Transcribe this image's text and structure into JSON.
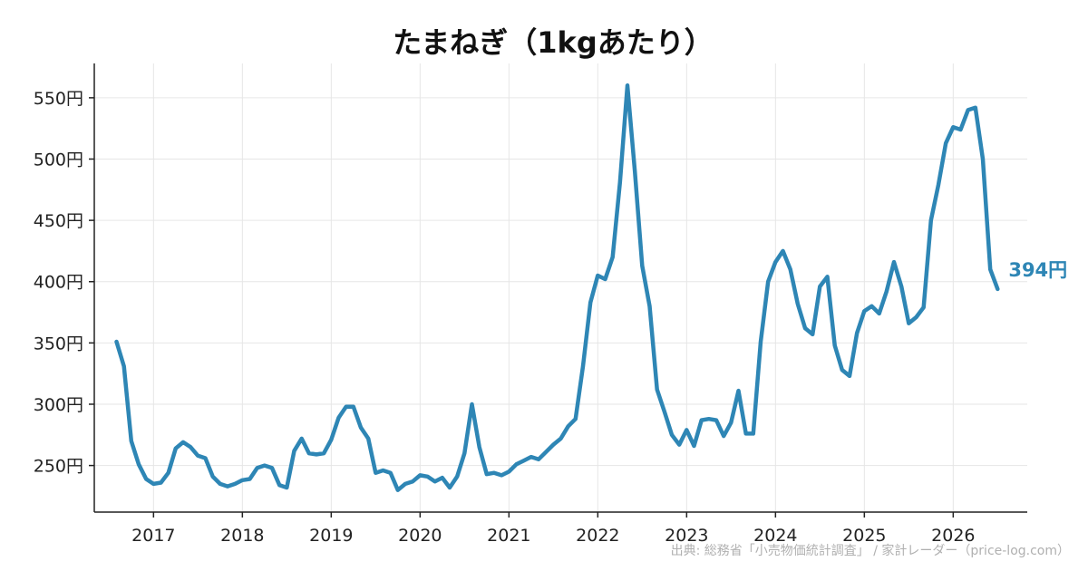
{
  "chart_data": {
    "type": "line",
    "title": "たまねぎ（1kgあたり）",
    "xlabel": "",
    "ylabel": "",
    "ylim": [
      212,
      578
    ],
    "xlim": [
      "2016-05",
      "2026-11"
    ],
    "y_ticks": [
      {
        "value": 250,
        "label": "250円"
      },
      {
        "value": 300,
        "label": "300円"
      },
      {
        "value": 350,
        "label": "350円"
      },
      {
        "value": 400,
        "label": "400円"
      },
      {
        "value": 450,
        "label": "450円"
      },
      {
        "value": 500,
        "label": "500円"
      },
      {
        "value": 550,
        "label": "550円"
      }
    ],
    "x_ticks": [
      {
        "value": "2017-01",
        "label": "2017"
      },
      {
        "value": "2018-01",
        "label": "2018"
      },
      {
        "value": "2019-01",
        "label": "2019"
      },
      {
        "value": "2020-01",
        "label": "2020"
      },
      {
        "value": "2021-01",
        "label": "2021"
      },
      {
        "value": "2022-01",
        "label": "2022"
      },
      {
        "value": "2023-01",
        "label": "2023"
      },
      {
        "value": "2024-01",
        "label": "2024"
      },
      {
        "value": "2025-01",
        "label": "2025"
      },
      {
        "value": "2026-01",
        "label": "2026"
      }
    ],
    "grid": true,
    "legend": "none",
    "series": [
      {
        "color": "#2e86b5",
        "start": "2016-08",
        "values": [
          351,
          331,
          270,
          251,
          239,
          235,
          236,
          244,
          264,
          269,
          265,
          258,
          256,
          241,
          235,
          233,
          235,
          238,
          239,
          248,
          250,
          248,
          234,
          232,
          262,
          272,
          260,
          259,
          260,
          271,
          289,
          298,
          298,
          281,
          272,
          244,
          246,
          244,
          230,
          235,
          237,
          242,
          241,
          237,
          240,
          232,
          241,
          260,
          300,
          265,
          243,
          244,
          242,
          245,
          251,
          254,
          257,
          255,
          261,
          267,
          272,
          282,
          288,
          331,
          383,
          405,
          402,
          420,
          481,
          560,
          490,
          413,
          380,
          312,
          294,
          275,
          267,
          279,
          266,
          287,
          288,
          287,
          274,
          285,
          311,
          276,
          276,
          351,
          400,
          416,
          425,
          410,
          382,
          362,
          357,
          396,
          404,
          348,
          328,
          323,
          358,
          376,
          380,
          374,
          392,
          416,
          396,
          366,
          371,
          379,
          450,
          479,
          513,
          526,
          524,
          540,
          542,
          500,
          410,
          394
        ]
      }
    ],
    "end_label": "394円",
    "source": "出典: 総務省「小売物価統計調査」 / 家計レーダー（price-log.com）"
  }
}
